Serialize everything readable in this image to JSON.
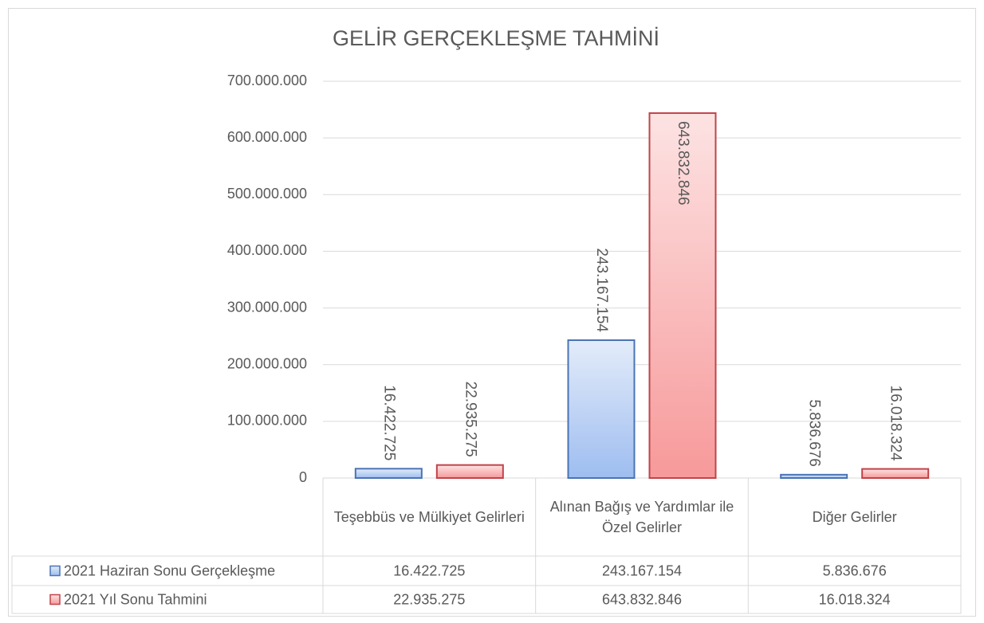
{
  "chart_data": {
    "type": "bar",
    "title": "GELİR GERÇEKLEŞME TAHMİNİ",
    "categories": [
      "Teşebbüs ve Mülkiyet Gelirleri",
      "Alınan Bağış ve Yardımlar ile Özel Gelirler",
      "Diğer Gelirler"
    ],
    "series": [
      {
        "name": "2021 Haziran Sonu Gerçekleşme",
        "color": "#4a74b5",
        "values": [
          16422725,
          243167154,
          5836676
        ],
        "value_labels": [
          "16.422.725",
          "243.167.154",
          "5.836.676"
        ]
      },
      {
        "name": "2021 Yıl Sonu Tahmini",
        "color": "#c0444a",
        "values": [
          22935275,
          643832846,
          16018324
        ],
        "value_labels": [
          "22.935.275",
          "643.832.846",
          "16.018.324"
        ]
      }
    ],
    "ylim": [
      0,
      700000000
    ],
    "yticks": [
      0,
      {
        "value": 100000000,
        "label": "100.000.000"
      },
      {
        "value": 200000000,
        "label": "200.000.000"
      },
      {
        "value": 300000000,
        "label": "300.000.000"
      },
      {
        "value": 400000000,
        "label": "400.000.000"
      },
      {
        "value": 500000000,
        "label": "500.000.000"
      },
      {
        "value": 600000000,
        "label": "600.000.000"
      },
      {
        "value": 700000000,
        "label": "700.000.000"
      }
    ],
    "grid": true,
    "data_table": true
  }
}
